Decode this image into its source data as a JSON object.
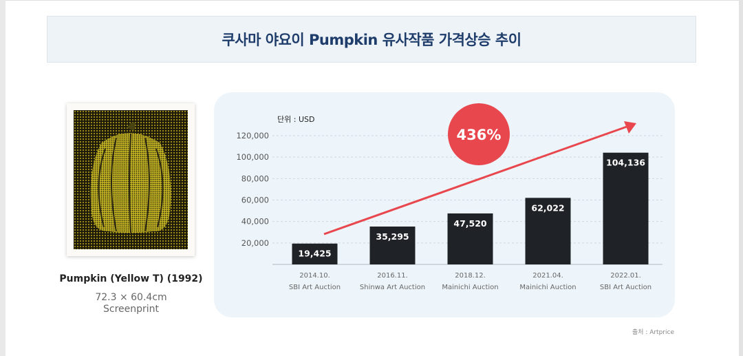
{
  "header": {
    "title": "쿠사마 야요이 Pumpkin 유사작품 가격상승 추이"
  },
  "artwork": {
    "title": "Pumpkin (Yellow T) (1992)",
    "dimensions": "72.3 × 60.4cm",
    "medium": "Screenprint",
    "image_icon": "pumpkin-artwork-icon"
  },
  "chart_data": {
    "type": "bar",
    "unit_label": "단위 : USD",
    "categories": [
      {
        "date": "2014.10.",
        "auction": "SBI Art Auction"
      },
      {
        "date": "2016.11.",
        "auction": "Shinwa Art Auction"
      },
      {
        "date": "2018.12.",
        "auction": "Mainichi Auction"
      },
      {
        "date": "2021.04.",
        "auction": "Mainichi Auction"
      },
      {
        "date": "2022.01.",
        "auction": "SBI Art Auction"
      }
    ],
    "values": [
      19425,
      35295,
      47520,
      62022,
      104136
    ],
    "value_labels": [
      "19,425",
      "35,295",
      "47,520",
      "62,022",
      "104,136"
    ],
    "ylim": [
      0,
      120000
    ],
    "yticks": [
      20000,
      40000,
      60000,
      80000,
      100000,
      120000
    ],
    "ytick_labels": [
      "20,000",
      "40,000",
      "60,000",
      "80,000",
      "100,000",
      "120,000"
    ],
    "grid": true,
    "annotation": {
      "text": "436%",
      "color": "#e8474e"
    },
    "trend_arrow_color": "#e8474e",
    "bar_color": "#1f2226"
  },
  "source": "출처 : Artprice",
  "colors": {
    "title": "#1f3d6b",
    "panel": "#eef5fa"
  }
}
